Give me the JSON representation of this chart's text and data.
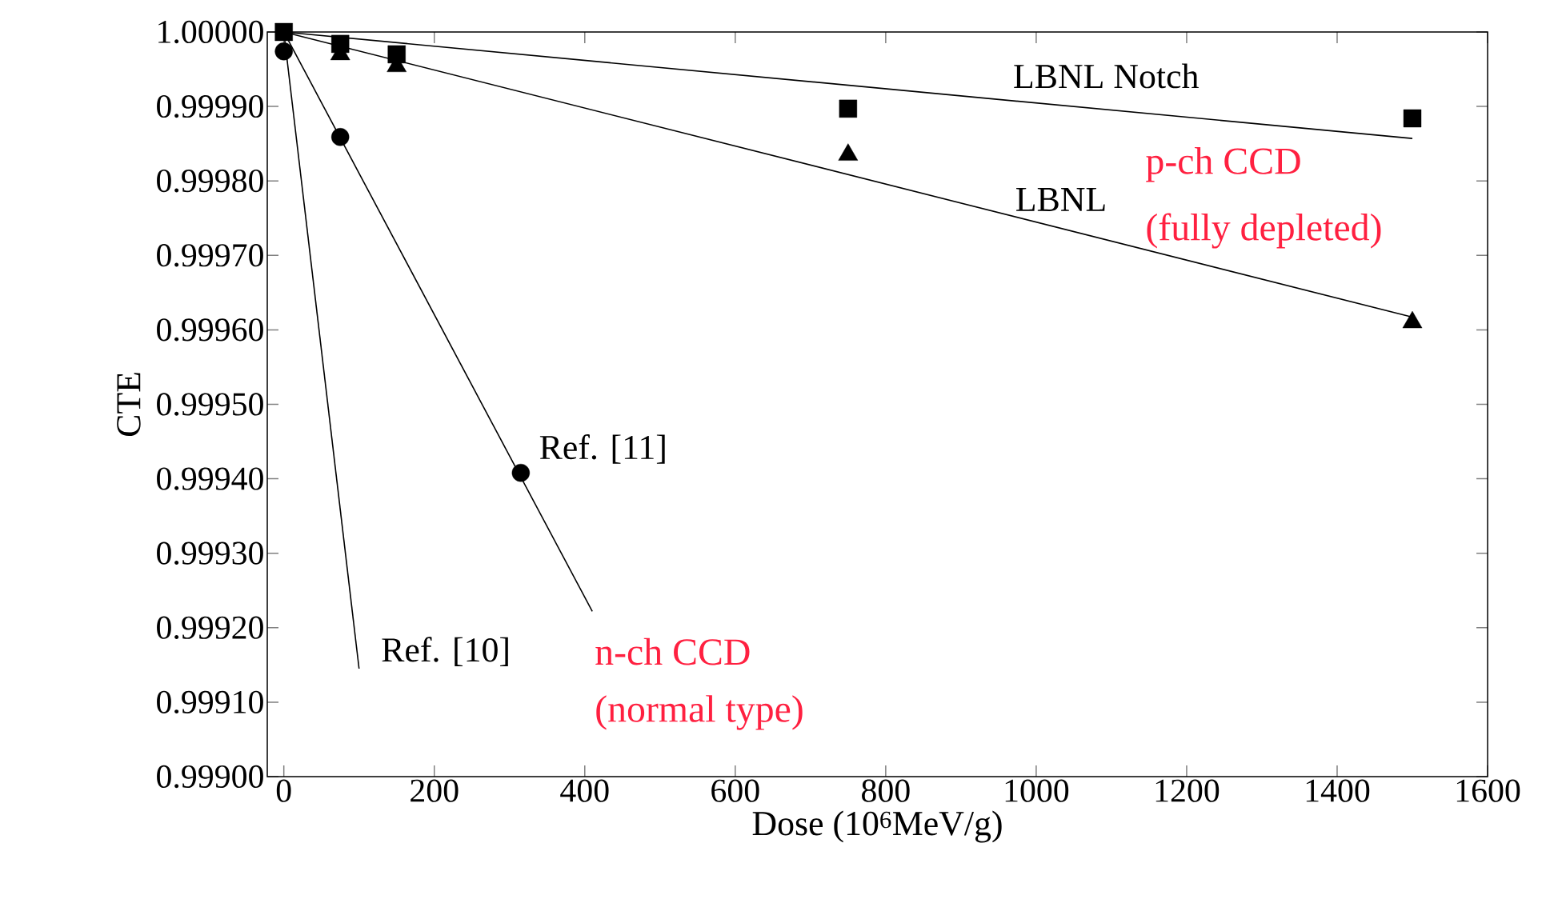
{
  "chart_data": {
    "type": "scatter",
    "xlabel": "Dose (10$^{6}$MeV/g)",
    "ylabel": "CTE",
    "xlim": [
      -22,
      1600
    ],
    "xticks": [
      0,
      200,
      400,
      600,
      800,
      1000,
      1200,
      1400,
      1600
    ],
    "ylim": [
      0.999,
      1.0
    ],
    "yticks": [
      {
        "value": 0.999,
        "label": "0.99900"
      },
      {
        "value": 0.9991,
        "label": "0.99910"
      },
      {
        "value": 0.9992,
        "label": "0.99920"
      },
      {
        "value": 0.9993,
        "label": "0.99930"
      },
      {
        "value": 0.9994,
        "label": "0.99940"
      },
      {
        "value": 0.9995,
        "label": "0.99950"
      },
      {
        "value": 0.9996,
        "label": "0.99960"
      },
      {
        "value": 0.9997,
        "label": "0.99970"
      },
      {
        "value": 0.9998,
        "label": "0.99980"
      },
      {
        "value": 0.9999,
        "label": "0.99990"
      },
      {
        "value": 1.0,
        "label": "1.00000"
      }
    ],
    "grid": false,
    "series": [
      {
        "marker": "square",
        "color": "#000000",
        "x": [
          0,
          75,
          150,
          750,
          1500
        ],
        "values": [
          1.0,
          0.999984,
          0.99997,
          0.999897,
          0.999884
        ]
      },
      {
        "marker": "triangle",
        "color": "#000000",
        "x": [
          75,
          150,
          750,
          1500
        ],
        "values": [
          0.99997,
          0.999954,
          0.999835,
          0.99961
        ]
      },
      {
        "marker": "circle",
        "color": "#000000",
        "x": [
          0,
          75,
          315
        ],
        "values": [
          0.999974,
          0.999859,
          0.999408
        ]
      },
      {
        "type": "line",
        "color": "#000000",
        "x": [
          0,
          1500
        ],
        "values": [
          1.0,
          0.999857
        ]
      },
      {
        "type": "line",
        "color": "#000000",
        "x": [
          0,
          1500
        ],
        "values": [
          1.0,
          0.999617
        ]
      },
      {
        "type": "line",
        "color": "#000000",
        "x": [
          0,
          410
        ],
        "values": [
          1.0,
          0.999222
        ]
      },
      {
        "type": "line",
        "color": "#000000",
        "x": [
          0,
          100
        ],
        "values": [
          1.0,
          0.999145
        ]
      }
    ],
    "annotations": [
      "LBNL Notch",
      "LBNL",
      "p-ch CCD",
      "(fully depleted)",
      "Ref. [11]",
      "Ref. [10]",
      "n-ch CCD",
      "(normal type)"
    ]
  }
}
